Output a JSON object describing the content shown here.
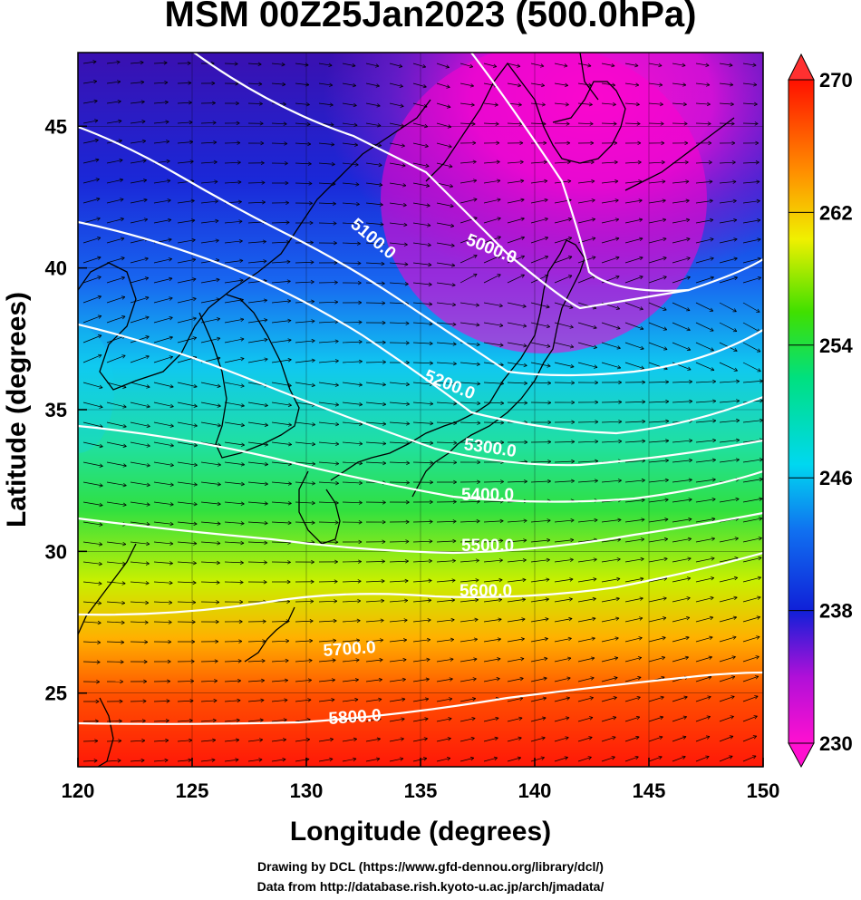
{
  "title": "MSM 00Z25Jan2023 (500.0hPa)",
  "x_axis": {
    "label": "Longitude (degrees)",
    "ticks": [
      "120",
      "125",
      "130",
      "135",
      "140",
      "145",
      "150"
    ]
  },
  "y_axis": {
    "label": "Latitude  (degrees)",
    "ticks": [
      "25",
      "30",
      "35",
      "40",
      "45"
    ]
  },
  "colorbar": {
    "ticks": [
      "230",
      "238",
      "246",
      "254",
      "262",
      "270"
    ]
  },
  "contour_labels": [
    "5000.0",
    "5100.0",
    "5200.0",
    "5300.0",
    "5400.0",
    "5500.0",
    "5600.0",
    "5700.0",
    "5800.0"
  ],
  "credits": [
    "Drawing by DCL (https://www.gfd-dennou.org/library/dcl/)",
    "Data from http://database.rish.kyoto-u.ac.jp/arch/jmadata/"
  ],
  "chart_data": {
    "type": "heatmap",
    "title": "MSM 00Z25Jan2023 (500.0hPa)",
    "xlabel": "Longitude (degrees)",
    "ylabel": "Latitude  (degrees)",
    "xlim": [
      120,
      150
    ],
    "ylim": [
      22.4,
      47.6
    ],
    "colorbar_range": [
      230,
      270
    ],
    "colorbar_ticks": [
      230,
      238,
      246,
      254,
      262,
      270
    ],
    "colormap": [
      "#ff00cc",
      "#8000c0",
      "#1020e0",
      "#00b8ff",
      "#00e060",
      "#e0f000",
      "#ff8000",
      "#ff1000"
    ],
    "contour_levels": [
      5000,
      5100,
      5200,
      5300,
      5400,
      5500,
      5600,
      5700,
      5800
    ],
    "contour_line_color": "#ffffff",
    "grid": true
  }
}
